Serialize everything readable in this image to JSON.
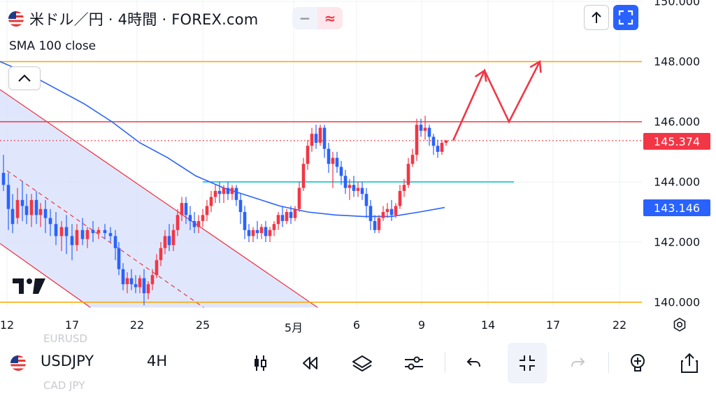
{
  "header": {
    "title": "米ドル／円 · 4時間 · FOREX.com",
    "indicator": "SMA 100 close",
    "pill_left": "−",
    "pill_right": "≈"
  },
  "price_labels": {
    "current": "145.374",
    "sma": "143.146",
    "current_color": "#f23645",
    "sma_color": "#2962ff"
  },
  "bottom_bar": {
    "symbol": "USDJPY",
    "timeframe": "4H",
    "ghost_above": "EURUSD",
    "ghost_below": "CAD JPY"
  },
  "chart_data": {
    "type": "candlestick",
    "symbol": "USDJPY",
    "interval": "4H",
    "y_axis": {
      "ticks": [
        "150.000",
        "148.000",
        "146.000",
        "144.000",
        "142.000",
        "140.000"
      ],
      "range": [
        139.8,
        150.2
      ]
    },
    "x_axis": {
      "ticks": [
        "12",
        "17",
        "22",
        "25",
        "5月",
        "6",
        "9",
        "14",
        "17",
        "22"
      ]
    },
    "grid": true,
    "horizontal_lines": [
      {
        "price": 148.0,
        "color": "#f7a600"
      },
      {
        "price": 146.0,
        "color": "#f23645"
      },
      {
        "price": 140.0,
        "color": "#f7a600"
      },
      {
        "price": 144.0,
        "color": "#00bcd4",
        "partial": true
      },
      {
        "price": 145.374,
        "color": "#f23645",
        "style": "dotted"
      }
    ],
    "sma_100": [
      [
        0,
        148.0
      ],
      [
        40,
        147.6
      ],
      [
        80,
        147.1
      ],
      [
        120,
        146.6
      ],
      [
        160,
        146.0
      ],
      [
        200,
        145.3
      ],
      [
        240,
        144.8
      ],
      [
        280,
        144.2
      ],
      [
        320,
        143.8
      ],
      [
        360,
        143.5
      ],
      [
        400,
        143.2
      ],
      [
        440,
        143.0
      ],
      [
        480,
        142.9
      ],
      [
        520,
        142.85
      ],
      [
        560,
        142.85
      ],
      [
        600,
        143.0
      ],
      [
        636,
        143.15
      ]
    ],
    "candles": [
      [
        5,
        144.3,
        144.9,
        143.9,
        143.7,
        "down"
      ],
      [
        12,
        143.9,
        144.3,
        143.1,
        142.4,
        "down"
      ],
      [
        18,
        143.1,
        143.6,
        142.6,
        142.3,
        "down"
      ],
      [
        25,
        142.8,
        143.8,
        143.4,
        142.6,
        "up"
      ],
      [
        32,
        143.4,
        144.0,
        143.2,
        142.7,
        "down"
      ],
      [
        38,
        143.2,
        143.6,
        142.9,
        142.6,
        "down"
      ],
      [
        45,
        142.9,
        143.6,
        143.4,
        142.5,
        "up"
      ],
      [
        52,
        143.4,
        143.7,
        142.9,
        142.6,
        "down"
      ],
      [
        58,
        142.9,
        143.3,
        143.1,
        142.5,
        "up"
      ],
      [
        65,
        143.1,
        143.4,
        142.8,
        142.3,
        "down"
      ],
      [
        72,
        142.8,
        143.1,
        142.6,
        142.2,
        "down"
      ],
      [
        80,
        142.6,
        143.0,
        142.2,
        141.9,
        "down"
      ],
      [
        88,
        142.2,
        142.7,
        142.5,
        141.7,
        "up"
      ],
      [
        95,
        142.5,
        142.9,
        142.2,
        141.6,
        "down"
      ],
      [
        103,
        142.2,
        142.6,
        141.9,
        141.4,
        "down"
      ],
      [
        110,
        141.9,
        142.6,
        142.4,
        141.7,
        "up"
      ],
      [
        118,
        142.4,
        142.8,
        142.1,
        141.9,
        "down"
      ],
      [
        125,
        142.1,
        142.5,
        142.4,
        141.8,
        "up"
      ],
      [
        133,
        142.4,
        142.7,
        142.3,
        142.0,
        "down"
      ],
      [
        141,
        142.3,
        142.5,
        142.4,
        142.1,
        "up"
      ],
      [
        150,
        142.4,
        142.6,
        142.3,
        142.1,
        "down"
      ],
      [
        158,
        142.3,
        142.5,
        142.2,
        142.0,
        "down"
      ],
      [
        165,
        142.2,
        142.4,
        141.8,
        141.4,
        "down"
      ],
      [
        170,
        141.8,
        142.0,
        141.1,
        140.9,
        "down"
      ],
      [
        176,
        141.1,
        141.3,
        140.6,
        140.4,
        "down"
      ],
      [
        182,
        140.6,
        141.0,
        140.8,
        140.3,
        "up"
      ],
      [
        188,
        140.8,
        141.1,
        140.6,
        140.4,
        "down"
      ],
      [
        194,
        140.6,
        140.9,
        140.5,
        140.3,
        "down"
      ],
      [
        200,
        140.5,
        140.9,
        140.8,
        140.3,
        "up"
      ],
      [
        206,
        140.8,
        141.1,
        140.3,
        139.9,
        "down"
      ],
      [
        212,
        140.3,
        140.7,
        140.6,
        140.1,
        "up"
      ],
      [
        218,
        140.6,
        141.1,
        140.9,
        140.4,
        "up"
      ],
      [
        224,
        140.9,
        141.6,
        141.4,
        140.8,
        "up"
      ],
      [
        230,
        141.4,
        142.0,
        141.8,
        141.2,
        "up"
      ],
      [
        236,
        141.8,
        142.4,
        142.2,
        141.6,
        "up"
      ],
      [
        242,
        142.2,
        142.6,
        141.9,
        141.7,
        "down"
      ],
      [
        248,
        141.9,
        142.6,
        142.4,
        141.7,
        "up"
      ],
      [
        254,
        142.4,
        143.1,
        142.9,
        142.2,
        "up"
      ],
      [
        260,
        142.9,
        143.5,
        143.3,
        142.7,
        "up"
      ],
      [
        266,
        143.3,
        143.5,
        142.9,
        142.6,
        "down"
      ],
      [
        272,
        142.9,
        143.2,
        142.7,
        142.4,
        "down"
      ],
      [
        278,
        142.7,
        143.0,
        142.5,
        142.3,
        "down"
      ],
      [
        284,
        142.5,
        142.9,
        142.7,
        142.3,
        "up"
      ],
      [
        290,
        142.7,
        143.1,
        142.9,
        142.5,
        "up"
      ],
      [
        296,
        142.9,
        143.4,
        143.2,
        142.7,
        "up"
      ],
      [
        302,
        143.2,
        143.7,
        143.5,
        143.0,
        "up"
      ],
      [
        308,
        143.5,
        143.9,
        143.7,
        143.3,
        "up"
      ],
      [
        314,
        143.7,
        144.0,
        143.6,
        143.3,
        "down"
      ],
      [
        320,
        143.6,
        143.9,
        143.8,
        143.3,
        "up"
      ],
      [
        326,
        143.8,
        144.0,
        143.6,
        143.4,
        "down"
      ],
      [
        332,
        143.6,
        143.9,
        143.8,
        143.4,
        "up"
      ],
      [
        338,
        143.8,
        143.9,
        143.4,
        143.2,
        "down"
      ],
      [
        344,
        143.4,
        143.6,
        143.0,
        142.6,
        "down"
      ],
      [
        350,
        143.0,
        143.2,
        142.4,
        142.1,
        "down"
      ],
      [
        356,
        142.4,
        142.6,
        142.2,
        142.0,
        "down"
      ],
      [
        362,
        142.2,
        142.5,
        142.4,
        142.0,
        "up"
      ],
      [
        368,
        142.4,
        142.7,
        142.3,
        142.1,
        "down"
      ],
      [
        374,
        142.3,
        142.6,
        142.5,
        142.1,
        "up"
      ],
      [
        380,
        142.5,
        142.7,
        142.2,
        142.0,
        "down"
      ],
      [
        386,
        142.2,
        142.5,
        142.4,
        142.0,
        "up"
      ],
      [
        392,
        142.4,
        142.7,
        142.6,
        142.2,
        "up"
      ],
      [
        398,
        142.6,
        143.0,
        142.9,
        142.4,
        "up"
      ],
      [
        404,
        142.9,
        143.2,
        142.7,
        142.5,
        "down"
      ],
      [
        410,
        142.7,
        143.1,
        143.0,
        142.6,
        "up"
      ],
      [
        416,
        143.0,
        143.2,
        142.8,
        142.6,
        "down"
      ],
      [
        422,
        142.8,
        143.2,
        143.1,
        142.7,
        "up"
      ],
      [
        428,
        143.1,
        144.0,
        143.8,
        143.0,
        "up"
      ],
      [
        434,
        143.8,
        144.8,
        144.6,
        143.7,
        "up"
      ],
      [
        440,
        144.6,
        145.4,
        145.2,
        144.4,
        "up"
      ],
      [
        446,
        145.2,
        145.8,
        145.6,
        145.0,
        "up"
      ],
      [
        452,
        145.6,
        145.9,
        145.3,
        145.1,
        "down"
      ],
      [
        458,
        145.3,
        145.9,
        145.8,
        145.2,
        "up"
      ],
      [
        464,
        145.8,
        145.9,
        145.1,
        144.8,
        "down"
      ],
      [
        470,
        145.1,
        145.3,
        144.6,
        144.3,
        "down"
      ],
      [
        476,
        144.6,
        145.0,
        144.8,
        143.8,
        "up"
      ],
      [
        482,
        144.8,
        145.0,
        144.5,
        144.3,
        "down"
      ],
      [
        488,
        144.5,
        144.7,
        144.2,
        143.9,
        "down"
      ],
      [
        494,
        144.2,
        144.4,
        143.8,
        143.6,
        "down"
      ],
      [
        500,
        143.8,
        144.1,
        143.9,
        143.4,
        "up"
      ],
      [
        506,
        143.9,
        144.2,
        143.7,
        143.5,
        "down"
      ],
      [
        512,
        143.7,
        144.0,
        143.8,
        143.5,
        "up"
      ],
      [
        518,
        143.8,
        144.0,
        143.6,
        143.4,
        "down"
      ],
      [
        524,
        143.6,
        143.8,
        143.2,
        142.8,
        "down"
      ],
      [
        530,
        143.2,
        143.4,
        142.7,
        142.4,
        "down"
      ],
      [
        536,
        142.7,
        142.9,
        142.4,
        142.3,
        "down"
      ],
      [
        542,
        142.4,
        142.9,
        142.8,
        142.3,
        "up"
      ],
      [
        548,
        142.8,
        143.2,
        143.0,
        142.7,
        "up"
      ],
      [
        554,
        143.0,
        143.3,
        143.1,
        142.8,
        "up"
      ],
      [
        560,
        143.1,
        143.4,
        142.9,
        142.7,
        "down"
      ],
      [
        566,
        142.9,
        143.3,
        143.2,
        142.8,
        "up"
      ],
      [
        572,
        143.2,
        143.9,
        143.7,
        143.1,
        "up"
      ],
      [
        578,
        143.7,
        144.1,
        143.9,
        143.5,
        "up"
      ],
      [
        584,
        143.9,
        144.8,
        144.6,
        143.8,
        "up"
      ],
      [
        590,
        144.6,
        145.1,
        144.9,
        144.5,
        "up"
      ],
      [
        596,
        144.9,
        146.1,
        145.9,
        144.7,
        "up"
      ],
      [
        602,
        145.9,
        146.1,
        145.7,
        145.5,
        "down"
      ],
      [
        608,
        145.7,
        146.2,
        145.8,
        145.4,
        "up"
      ],
      [
        614,
        145.8,
        145.9,
        145.5,
        145.2,
        "down"
      ],
      [
        620,
        145.5,
        145.6,
        145.2,
        144.9,
        "down"
      ],
      [
        626,
        145.2,
        145.4,
        145.0,
        144.8,
        "down"
      ],
      [
        632,
        145.0,
        145.4,
        145.3,
        144.9,
        "up"
      ],
      [
        638,
        145.3,
        145.4,
        145.374,
        145.2,
        "up"
      ]
    ],
    "channel": {
      "color": "#f23645",
      "fill": "#dbe3fb"
    },
    "projection_arrow": {
      "color": "#f23645",
      "path": [
        [
          648,
          145.374
        ],
        [
          693,
          147.7
        ],
        [
          728,
          146.0
        ],
        [
          772,
          148.0
        ]
      ]
    }
  }
}
